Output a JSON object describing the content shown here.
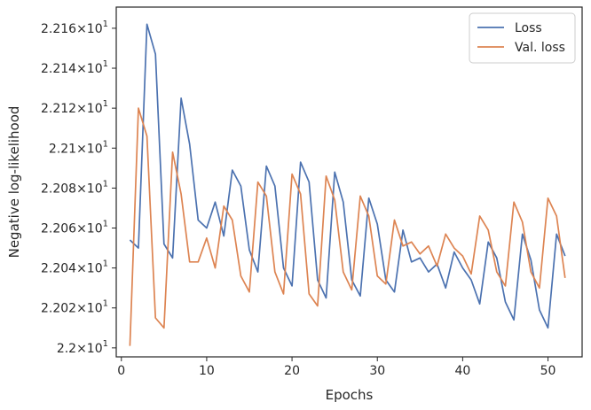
{
  "chart_data": {
    "type": "line",
    "xlabel": "Epochs",
    "ylabel": "Negative log-likelihood",
    "xlim": [
      -0.6,
      54
    ],
    "ylim": [
      21.9955,
      22.1706
    ],
    "x_ticks": [
      0,
      10,
      20,
      30,
      40,
      50
    ],
    "y_ticks": [
      {
        "value": 22.0,
        "mantissa": "2.2"
      },
      {
        "value": 22.02,
        "mantissa": "2.202"
      },
      {
        "value": 22.04,
        "mantissa": "2.204"
      },
      {
        "value": 22.06,
        "mantissa": "2.206"
      },
      {
        "value": 22.08,
        "mantissa": "2.208"
      },
      {
        "value": 22.1,
        "mantissa": "2.21"
      },
      {
        "value": 22.12,
        "mantissa": "2.212"
      },
      {
        "value": 22.14,
        "mantissa": "2.214"
      },
      {
        "value": 22.16,
        "mantissa": "2.216"
      }
    ],
    "y_tick_suffix": "×10",
    "y_tick_exponent": "1",
    "legend_position": "top-right",
    "grid": false,
    "x": [
      1,
      2,
      3,
      4,
      5,
      6,
      7,
      8,
      9,
      10,
      11,
      12,
      13,
      14,
      15,
      16,
      17,
      18,
      19,
      20,
      21,
      22,
      23,
      24,
      25,
      26,
      27,
      28,
      29,
      30,
      31,
      32,
      33,
      34,
      35,
      36,
      37,
      38,
      39,
      40,
      41,
      42,
      43,
      44,
      45,
      46,
      47,
      48,
      49,
      50,
      51,
      52
    ],
    "series": [
      {
        "name": "Loss",
        "color": "#4c72b0",
        "values": [
          22.054,
          22.05,
          22.162,
          22.147,
          22.052,
          22.045,
          22.125,
          22.102,
          22.064,
          22.06,
          22.073,
          22.056,
          22.089,
          22.081,
          22.049,
          22.038,
          22.091,
          22.081,
          22.04,
          22.031,
          22.093,
          22.083,
          22.034,
          22.025,
          22.088,
          22.073,
          22.034,
          22.026,
          22.075,
          22.062,
          22.034,
          22.028,
          22.059,
          22.043,
          22.045,
          22.038,
          22.042,
          22.03,
          22.048,
          22.04,
          22.034,
          22.022,
          22.053,
          22.045,
          22.023,
          22.014,
          22.057,
          22.044,
          22.019,
          22.01,
          22.057,
          22.046
        ]
      },
      {
        "name": "Val. loss",
        "color": "#dd8452",
        "values": [
          22.001,
          22.12,
          22.106,
          22.015,
          22.01,
          22.098,
          22.077,
          22.043,
          22.043,
          22.055,
          22.04,
          22.071,
          22.064,
          22.036,
          22.028,
          22.083,
          22.076,
          22.038,
          22.027,
          22.087,
          22.077,
          22.027,
          22.021,
          22.086,
          22.074,
          22.038,
          22.029,
          22.076,
          22.066,
          22.036,
          22.032,
          22.064,
          22.051,
          22.053,
          22.047,
          22.051,
          22.041,
          22.057,
          22.05,
          22.046,
          22.037,
          22.066,
          22.059,
          22.038,
          22.031,
          22.073,
          22.063,
          22.038,
          22.03,
          22.075,
          22.066,
          22.035
        ]
      }
    ]
  }
}
